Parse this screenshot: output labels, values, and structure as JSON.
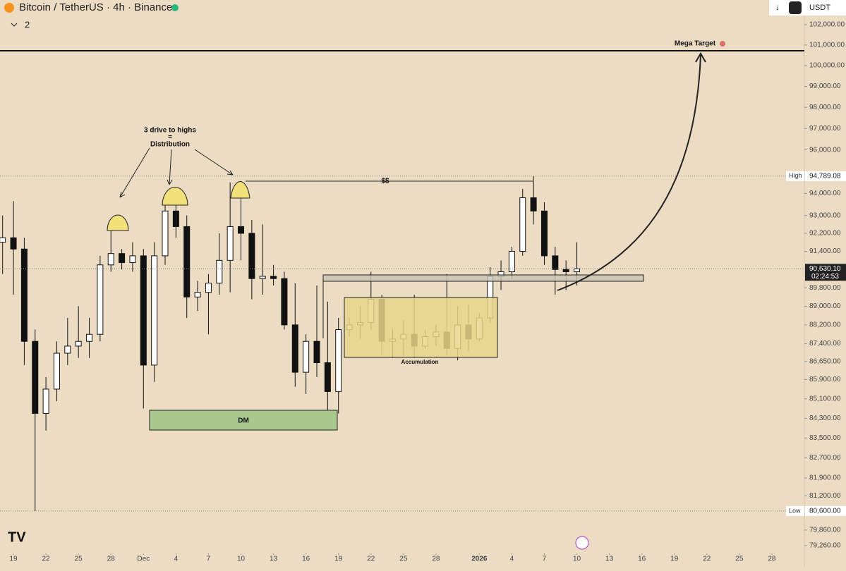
{
  "header": {
    "symbol": "Bitcoin / TetherUS · 4h · Binance",
    "indicator_count": "2",
    "currency": "USDT"
  },
  "chart_data": {
    "type": "candlestick",
    "x": [
      -1,
      0,
      1,
      2,
      3,
      4,
      5,
      6,
      7,
      8,
      9,
      10,
      11,
      12,
      13,
      14,
      15,
      16,
      17,
      18,
      19,
      20,
      21,
      22,
      23,
      24,
      25,
      26,
      27,
      28,
      29,
      30,
      31,
      32,
      33,
      34,
      35,
      36,
      37,
      38,
      39,
      40,
      41,
      42,
      43,
      44,
      45,
      46,
      47,
      48,
      49,
      50,
      51,
      52
    ],
    "open": [
      91800,
      92000,
      91500,
      87500,
      84500,
      85500,
      87000,
      87300,
      87500,
      87800,
      90800,
      91300,
      90900,
      91200,
      86500,
      91200,
      93200,
      92500,
      89400,
      89600,
      90000,
      91000,
      92500,
      92200,
      90200,
      90300,
      90200,
      88200,
      86200,
      87500,
      86600,
      85400,
      88000,
      88200,
      88300,
      89300,
      87500,
      87600,
      87800,
      87300,
      87700,
      87900,
      87200,
      88200,
      87600,
      88500,
      90300,
      90500,
      91400,
      93800,
      93200,
      91200,
      90600,
      90500
    ],
    "high": [
      93000,
      93650,
      92000,
      88000,
      86000,
      87500,
      88500,
      89000,
      88500,
      91200,
      92500,
      91500,
      91800,
      91500,
      91800,
      93600,
      94100,
      93000,
      90100,
      90400,
      92200,
      94500,
      94560,
      92800,
      92600,
      90800,
      90500,
      90000,
      87800,
      89900,
      89200,
      88500,
      88500,
      89000,
      90500,
      89500,
      88000,
      88400,
      89500,
      88000,
      88200,
      90400,
      89000,
      89100,
      88700,
      90700,
      91000,
      91600,
      94200,
      94789.08,
      93600,
      91600,
      91000,
      91800
    ],
    "low": [
      90400,
      89500,
      86500,
      80600,
      83800,
      85000,
      86500,
      86800,
      86800,
      87500,
      90500,
      90600,
      90500,
      84700,
      85800,
      90800,
      92000,
      88500,
      88800,
      87800,
      89500,
      89600,
      91000,
      89300,
      89500,
      89900,
      88000,
      85600,
      85300,
      86000,
      84500,
      84500,
      87700,
      87600,
      88000,
      86900,
      86800,
      86900,
      86800,
      87200,
      87300,
      86900,
      86700,
      87100,
      87500,
      88300,
      89700,
      90200,
      91200,
      92600,
      90800,
      89500,
      89700,
      89900
    ],
    "close": [
      92000,
      91500,
      87500,
      84500,
      85500,
      87000,
      87300,
      87500,
      87800,
      90800,
      91300,
      90900,
      91200,
      86500,
      91200,
      93200,
      92500,
      89400,
      89600,
      90000,
      91000,
      92500,
      92200,
      90200,
      90300,
      90200,
      88200,
      86200,
      87500,
      86600,
      85400,
      88000,
      88200,
      88300,
      89300,
      87500,
      87600,
      87800,
      87300,
      87700,
      87900,
      87200,
      88200,
      87600,
      88500,
      90300,
      90500,
      91400,
      93800,
      93200,
      91200,
      90600,
      90500,
      90630.1
    ],
    "up_color": "#ffffff",
    "down_color": "#111111",
    "xlim": [
      -1.24,
      73
    ],
    "xticks": [
      {
        "value": 0,
        "label": "19"
      },
      {
        "value": 3,
        "label": "22"
      },
      {
        "value": 6,
        "label": "25"
      },
      {
        "value": 9,
        "label": "28"
      },
      {
        "value": 12,
        "label": "Dec"
      },
      {
        "value": 15,
        "label": "4"
      },
      {
        "value": 18,
        "label": "7"
      },
      {
        "value": 21,
        "label": "10"
      },
      {
        "value": 24,
        "label": "13"
      },
      {
        "value": 27,
        "label": "16"
      },
      {
        "value": 30,
        "label": "19"
      },
      {
        "value": 33,
        "label": "22"
      },
      {
        "value": 36,
        "label": "25"
      },
      {
        "value": 39,
        "label": "28"
      },
      {
        "value": 43,
        "label": "2026"
      },
      {
        "value": 46,
        "label": "4"
      },
      {
        "value": 49,
        "label": "7"
      },
      {
        "value": 52,
        "label": "10"
      },
      {
        "value": 55,
        "label": "13"
      },
      {
        "value": 58,
        "label": "16"
      },
      {
        "value": 61,
        "label": "19"
      },
      {
        "value": 64,
        "label": "22"
      },
      {
        "value": 67,
        "label": "25"
      },
      {
        "value": 70,
        "label": "28"
      }
    ],
    "ylim": [
      78963,
      103226
    ],
    "log_scale": true,
    "yticks": [
      {
        "value": 102000,
        "label": "102,000.00"
      },
      {
        "value": 101000,
        "label": "101,000.00"
      },
      {
        "value": 100000,
        "label": "100,000.00"
      },
      {
        "value": 99000,
        "label": "99,000.00"
      },
      {
        "value": 98000,
        "label": "98,000.00"
      },
      {
        "value": 97000,
        "label": "97,000.00"
      },
      {
        "value": 96000,
        "label": "96,000.00"
      },
      {
        "value": 94000,
        "label": "94,000.00"
      },
      {
        "value": 93000,
        "label": "93,000.00"
      },
      {
        "value": 92200,
        "label": "92,200.00"
      },
      {
        "value": 91400,
        "label": "91,400.00"
      },
      {
        "value": 89800,
        "label": "89,800.00"
      },
      {
        "value": 89000,
        "label": "89,000.00"
      },
      {
        "value": 88200,
        "label": "88,200.00"
      },
      {
        "value": 87400,
        "label": "87,400.00"
      },
      {
        "value": 86650,
        "label": "86,650.00"
      },
      {
        "value": 85900,
        "label": "85,900.00"
      },
      {
        "value": 85100,
        "label": "85,100.00"
      },
      {
        "value": 84300,
        "label": "84,300.00"
      },
      {
        "value": 83500,
        "label": "83,500.00"
      },
      {
        "value": 82700,
        "label": "82,700.00"
      },
      {
        "value": 81900,
        "label": "81,900.00"
      },
      {
        "value": 81200,
        "label": "81,200.00"
      },
      {
        "value": 79860,
        "label": "79,860.00"
      },
      {
        "value": 79260,
        "label": "79,260.00"
      }
    ],
    "high_marker": {
      "label": "High",
      "value": 94789.08,
      "value_label": "94,789.08"
    },
    "low_marker": {
      "label": "Low",
      "value": 80600,
      "value_label": "80,600.00"
    },
    "last_price": {
      "value": 90630.1,
      "value_label": "90,630.10",
      "countdown": "02:24:53"
    },
    "annotations": {
      "drives": "3 drive to highs",
      "equals": "=",
      "distribution": "Distribution",
      "liquidity": "$$",
      "dm": "DM",
      "accumulation": "Accumulation",
      "target": "Mega Target"
    }
  }
}
